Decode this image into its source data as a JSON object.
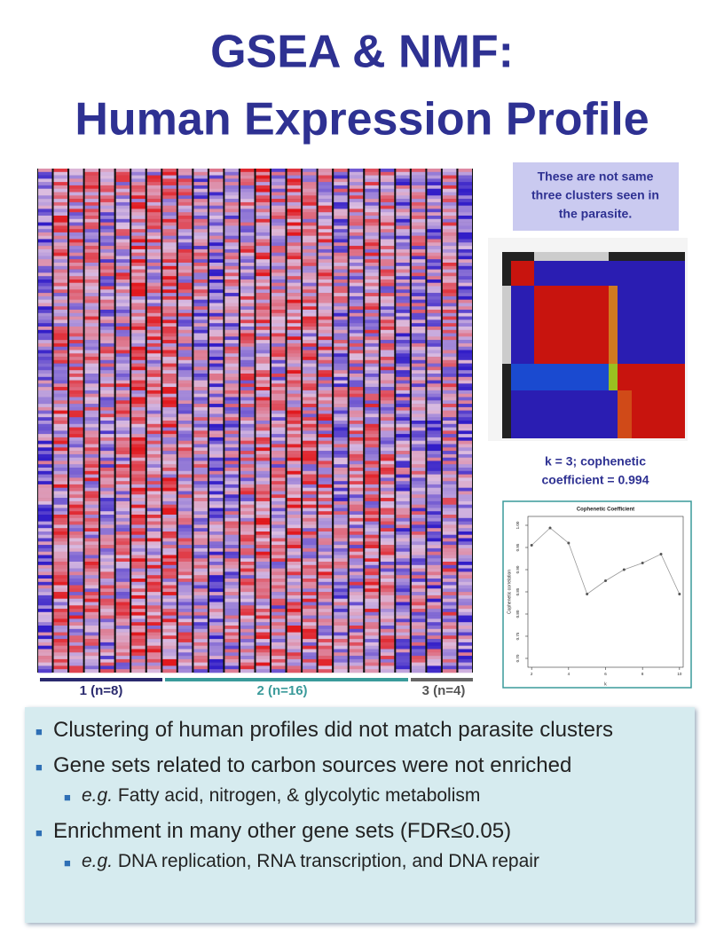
{
  "title": [
    "GSEA & NMF:",
    "Human Expression Profile"
  ],
  "note": [
    "These are not same",
    "three clusters seen in",
    "the parasite."
  ],
  "cluster_labels": [
    "1 (n=8)",
    "2 (n=16)",
    "3 (n=4)"
  ],
  "caption": [
    "k = 3; cophenetic",
    "coefficient = 0.994"
  ],
  "chart_data": {
    "type": "line",
    "title": "Cophenetic Coefficient",
    "y_label": "Cophenetic correlation",
    "x_label": "k",
    "x": [
      2,
      3,
      4,
      5,
      6,
      7,
      8,
      9,
      10
    ],
    "values": [
      0.955,
      0.994,
      0.96,
      0.845,
      0.875,
      0.9,
      0.915,
      0.935,
      0.845
    ],
    "color": "#555555",
    "xlim": [
      1.8,
      10.2
    ],
    "xticks": [
      2,
      4,
      6,
      8,
      10
    ],
    "ylim": [
      0.68,
      1.02
    ],
    "yticks": [
      {
        "value": 0.7,
        "label": "0.70"
      },
      {
        "value": 0.75,
        "label": "0.75"
      },
      {
        "value": 0.8,
        "label": "0.80"
      },
      {
        "value": 0.85,
        "label": "0.85"
      },
      {
        "value": 0.9,
        "label": "0.90"
      },
      {
        "value": 0.95,
        "label": "0.95"
      },
      {
        "value": 1,
        "label": "1.00"
      }
    ]
  },
  "bullets": [
    {
      "text": "Clustering of human profiles did not match parasite clusters"
    },
    {
      "text": "Gene sets related to carbon sources were not enriched",
      "sub": {
        "prefix": "e.g.",
        "text": "Fatty acid, nitrogen, & glycolytic metabolism"
      }
    },
    {
      "text": "Enrichment in many other gene sets (FDR≤0.05)",
      "sub": {
        "prefix": "e.g.",
        "text": "DNA replication, RNA transcription, and DNA repair"
      }
    }
  ]
}
